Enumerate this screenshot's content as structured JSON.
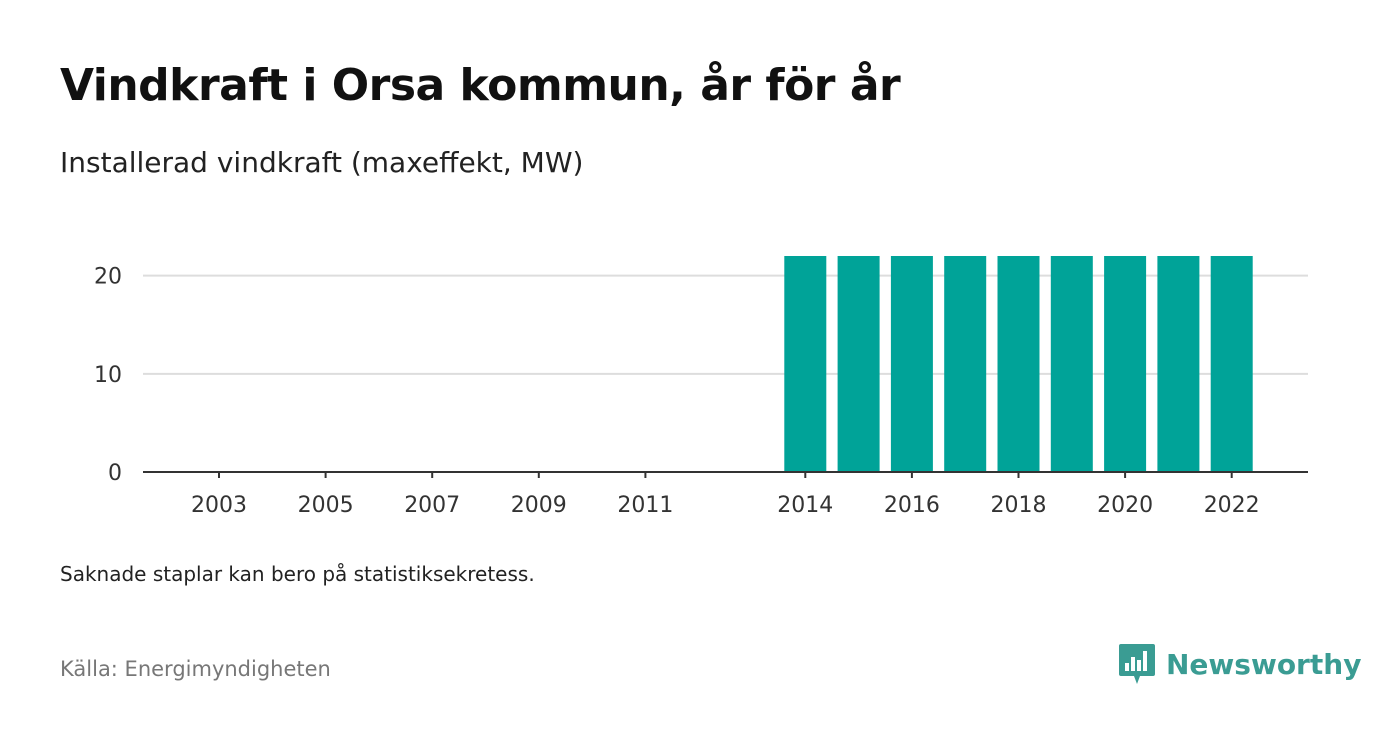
{
  "header": {
    "title": "Vindkraft i Orsa kommun, år för år",
    "subtitle": "Installerad vindkraft (maxeffekt, MW)"
  },
  "footer": {
    "note": "Saknade staplar kan bero på statistiksekretess.",
    "source": "Källa: Energimyndigheten",
    "brand": "Newsworthy",
    "brand_icon": "bar-chart-logo-icon",
    "brand_color": "#3a9c93"
  },
  "chart_data": {
    "type": "bar",
    "bar_color": "#00a398",
    "categories": [
      2003,
      2004,
      2005,
      2006,
      2007,
      2008,
      2009,
      2010,
      2011,
      2012,
      2013,
      2014,
      2015,
      2016,
      2017,
      2018,
      2019,
      2020,
      2021,
      2022
    ],
    "values": [
      0,
      0,
      0,
      0,
      0,
      0,
      0,
      0,
      0,
      null,
      null,
      22,
      22,
      22,
      22,
      22,
      22,
      22,
      22,
      22
    ],
    "x_tick_labels": [
      "2003",
      "2005",
      "2007",
      "2009",
      "2011",
      "2014",
      "2016",
      "2018",
      "2020",
      "2022"
    ],
    "y_ticks": [
      0,
      10,
      20
    ],
    "ylim": [
      0,
      22
    ],
    "grid": true,
    "legend": "none"
  }
}
